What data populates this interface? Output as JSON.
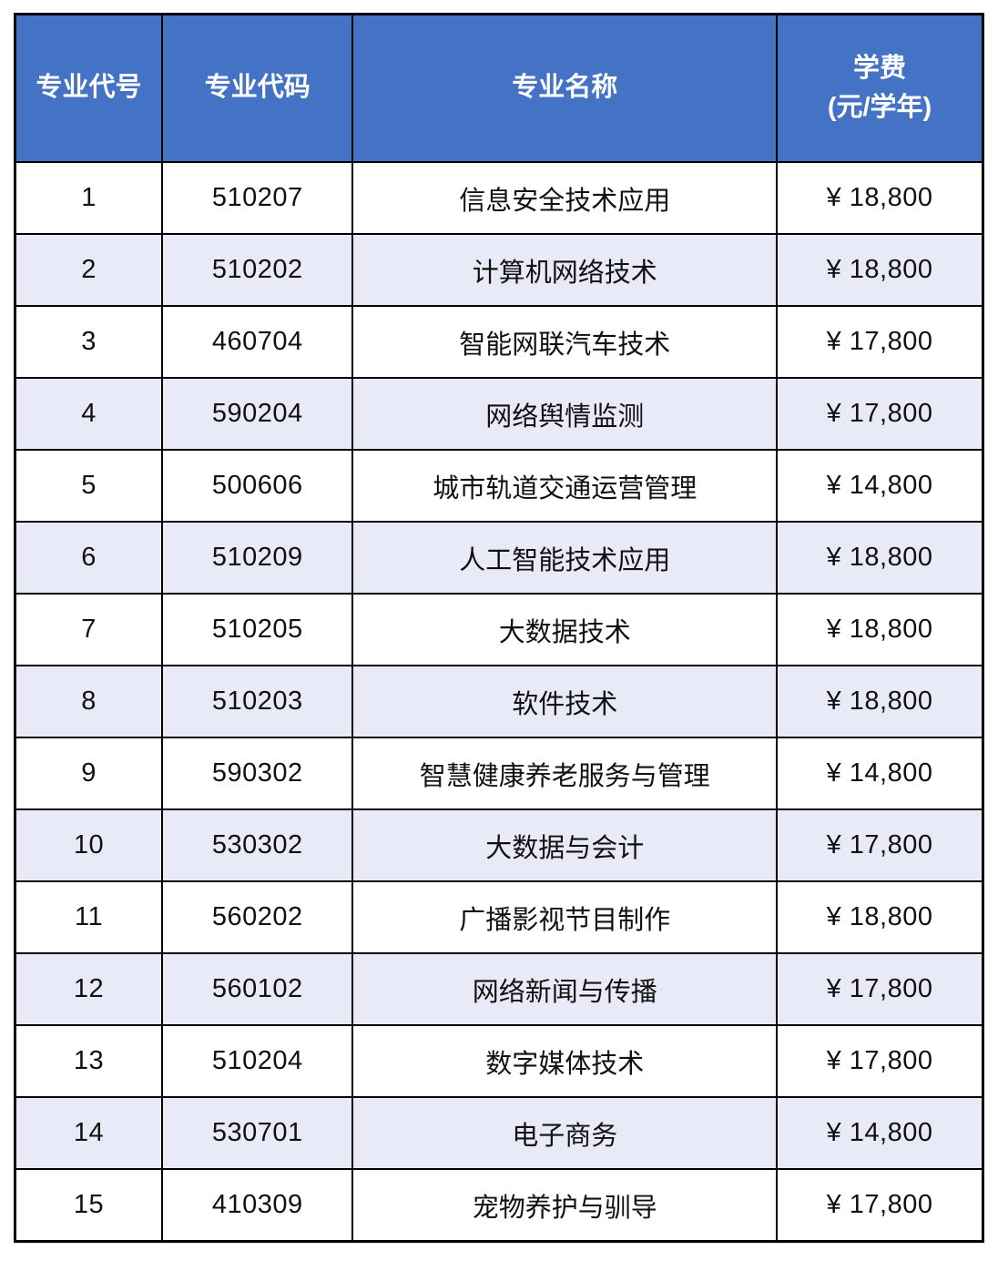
{
  "table": {
    "header": {
      "columns": [
        "专业代号",
        "专业代码",
        "专业名称",
        "学费"
      ],
      "fee_unit": "(元/学年)"
    },
    "rows": [
      {
        "no": "1",
        "code": "510207",
        "name": "信息安全技术应用",
        "fee": "¥ 18,800"
      },
      {
        "no": "2",
        "code": "510202",
        "name": "计算机网络技术",
        "fee": "¥ 18,800"
      },
      {
        "no": "3",
        "code": "460704",
        "name": "智能网联汽车技术",
        "fee": "¥ 17,800"
      },
      {
        "no": "4",
        "code": "590204",
        "name": "网络舆情监测",
        "fee": "¥ 17,800"
      },
      {
        "no": "5",
        "code": "500606",
        "name": "城市轨道交通运营管理",
        "fee": "¥ 14,800"
      },
      {
        "no": "6",
        "code": "510209",
        "name": "人工智能技术应用",
        "fee": "¥ 18,800"
      },
      {
        "no": "7",
        "code": "510205",
        "name": "大数据技术",
        "fee": "¥ 18,800"
      },
      {
        "no": "8",
        "code": "510203",
        "name": "软件技术",
        "fee": "¥ 18,800"
      },
      {
        "no": "9",
        "code": "590302",
        "name": "智慧健康养老服务与管理",
        "fee": "¥ 14,800"
      },
      {
        "no": "10",
        "code": "530302",
        "name": "大数据与会计",
        "fee": "¥ 17,800"
      },
      {
        "no": "11",
        "code": "560202",
        "name": "广播影视节目制作",
        "fee": "¥ 18,800"
      },
      {
        "no": "12",
        "code": "560102",
        "name": "网络新闻与传播",
        "fee": "¥ 17,800"
      },
      {
        "no": "13",
        "code": "510204",
        "name": "数字媒体技术",
        "fee": "¥ 17,800"
      },
      {
        "no": "14",
        "code": "530701",
        "name": "电子商务",
        "fee": "¥ 14,800"
      },
      {
        "no": "15",
        "code": "410309",
        "name": "宠物养护与驯导",
        "fee": "¥ 17,800"
      }
    ],
    "colors": {
      "header_bg": "#4472C4",
      "header_text": "#FFFFFF",
      "row_bg": "#FFFFFF",
      "row_alt_bg": "#E8EBF7",
      "border": "#000000",
      "body_text": "#111111"
    }
  },
  "chart_data": {
    "type": "table",
    "title": "",
    "columns": [
      "专业代号",
      "专业代码",
      "专业名称",
      "学费(元/学年)"
    ],
    "rows": [
      [
        "1",
        "510207",
        "信息安全技术应用",
        "¥ 18,800"
      ],
      [
        "2",
        "510202",
        "计算机网络技术",
        "¥ 18,800"
      ],
      [
        "3",
        "460704",
        "智能网联汽车技术",
        "¥ 17,800"
      ],
      [
        "4",
        "590204",
        "网络舆情监测",
        "¥ 17,800"
      ],
      [
        "5",
        "500606",
        "城市轨道交通运营管理",
        "¥ 14,800"
      ],
      [
        "6",
        "510209",
        "人工智能技术应用",
        "¥ 18,800"
      ],
      [
        "7",
        "510205",
        "大数据技术",
        "¥ 18,800"
      ],
      [
        "8",
        "510203",
        "软件技术",
        "¥ 18,800"
      ],
      [
        "9",
        "590302",
        "智慧健康养老服务与管理",
        "¥ 14,800"
      ],
      [
        "10",
        "530302",
        "大数据与会计",
        "¥ 17,800"
      ],
      [
        "11",
        "560202",
        "广播影视节目制作",
        "¥ 18,800"
      ],
      [
        "12",
        "560102",
        "网络新闻与传播",
        "¥ 17,800"
      ],
      [
        "13",
        "510204",
        "数字媒体技术",
        "¥ 17,800"
      ],
      [
        "14",
        "530701",
        "电子商务",
        "¥ 14,800"
      ],
      [
        "15",
        "410309",
        "宠物养护与驯导",
        "¥ 17,800"
      ]
    ],
    "tuition_values_numeric": [
      18800,
      18800,
      17800,
      17800,
      14800,
      18800,
      18800,
      18800,
      14800,
      17800,
      18800,
      17800,
      17800,
      14800,
      17800
    ]
  }
}
